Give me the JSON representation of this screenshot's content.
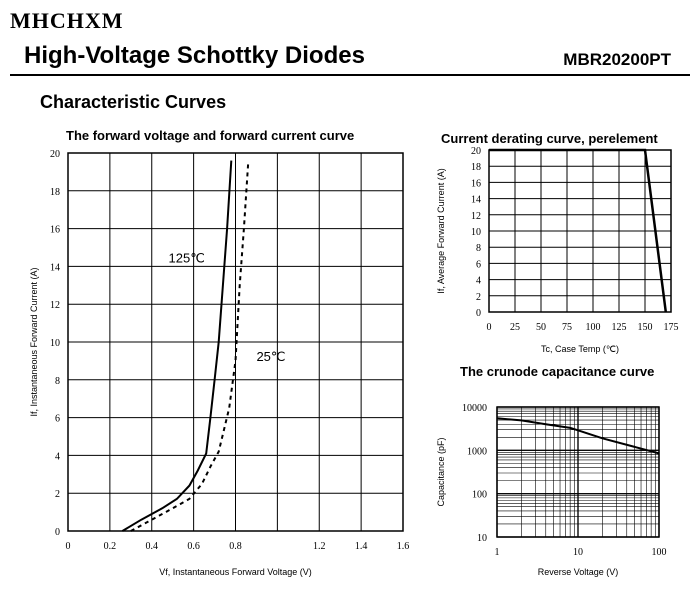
{
  "header": {
    "brand": "MHCHXM",
    "title": "High-Voltage Schottky Diodes",
    "part_number": "MBR20200PT",
    "section_title": "Characteristic Curves"
  },
  "chart_data": [
    {
      "type": "line",
      "title": "The forward voltage and forward current curve",
      "xlabel": "Vf, Instantaneous Forward Voltage (V)",
      "ylabel": "If, Instantaneous Forward Current (A)",
      "xlim": [
        0,
        1.6
      ],
      "ylim": [
        0,
        20
      ],
      "x_ticks": [
        "0",
        "0.2",
        "0.4",
        "0.6",
        "0.8",
        "1.2",
        "1.4",
        "1.6"
      ],
      "x_tick_values": [
        0,
        0.2,
        0.4,
        0.6,
        0.8,
        1.2,
        1.4,
        1.6
      ],
      "y_ticks": [
        "0",
        "2",
        "4",
        "6",
        "8",
        "10",
        "12",
        "14",
        "16",
        "18",
        "20"
      ],
      "grid": true,
      "series": [
        {
          "name": "125℃",
          "style": "solid",
          "x": [
            0.26,
            0.35,
            0.45,
            0.52,
            0.58,
            0.62,
            0.66,
            0.68,
            0.7,
            0.72,
            0.74,
            0.76,
            0.78
          ],
          "y": [
            0,
            0.6,
            1.2,
            1.7,
            2.4,
            3.2,
            4.1,
            6.0,
            8.0,
            10.0,
            13.0,
            16.0,
            19.6
          ]
        },
        {
          "name": "25℃",
          "style": "dashed",
          "x": [
            0.3,
            0.4,
            0.5,
            0.58,
            0.64,
            0.68,
            0.72,
            0.77,
            0.8,
            0.81,
            0.82,
            0.84,
            0.86
          ],
          "y": [
            0,
            0.6,
            1.2,
            1.7,
            2.5,
            3.4,
            4.2,
            6.5,
            9.0,
            11.0,
            13.0,
            16.0,
            19.4
          ]
        }
      ]
    },
    {
      "type": "line",
      "title": "Current derating curve, perelement",
      "xlabel": "Tc, Case Temp (℃)",
      "ylabel": "If, Average Forward Current (A)",
      "xlim": [
        0,
        175
      ],
      "ylim": [
        0,
        20
      ],
      "x_ticks": [
        "0",
        "25",
        "50",
        "75",
        "100",
        "125",
        "150",
        "175"
      ],
      "y_ticks": [
        "0",
        "2",
        "4",
        "6",
        "8",
        "10",
        "12",
        "14",
        "16",
        "18",
        "20"
      ],
      "grid": true,
      "series": [
        {
          "x": [
            0,
            150,
            170
          ],
          "y": [
            20,
            20,
            0
          ]
        }
      ]
    },
    {
      "type": "line",
      "title": "The crunode capacitance curve",
      "xlabel": "Reverse Voltage (V)",
      "ylabel": "Capacitance (pF)",
      "xscale": "log",
      "yscale": "log",
      "xlim": [
        1,
        100
      ],
      "ylim": [
        10,
        10000
      ],
      "x_ticks": [
        "1",
        "10",
        "100"
      ],
      "y_ticks": [
        "10",
        "100",
        "1000",
        "10000"
      ],
      "grid": true,
      "series": [
        {
          "x": [
            1,
            2,
            4,
            8,
            10,
            20,
            50,
            100
          ],
          "y": [
            5500,
            4900,
            4000,
            3300,
            2900,
            1900,
            1200,
            850
          ]
        }
      ]
    }
  ]
}
